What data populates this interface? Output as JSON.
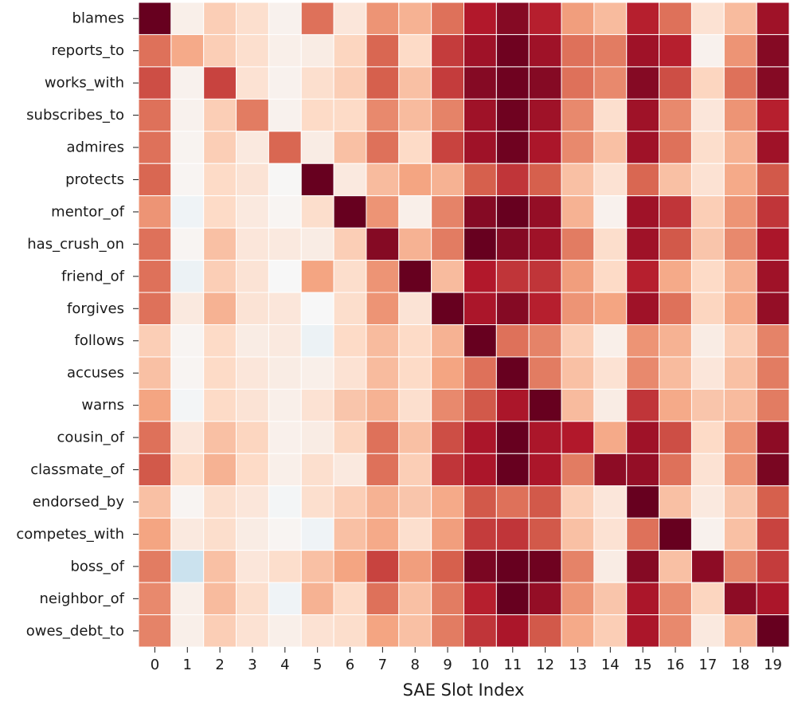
{
  "chart_data": {
    "type": "heatmap",
    "title": "",
    "xlabel": "SAE Slot Index",
    "ylabel": "",
    "x_categories": [
      "0",
      "1",
      "2",
      "3",
      "4",
      "5",
      "6",
      "7",
      "8",
      "9",
      "10",
      "11",
      "12",
      "13",
      "14",
      "15",
      "16",
      "17",
      "18",
      "19"
    ],
    "y_categories": [
      "blames",
      "reports_to",
      "works_with",
      "subscribes_to",
      "admires",
      "protects",
      "mentor_of",
      "has_crush_on",
      "friend_of",
      "forgives",
      "follows",
      "accuses",
      "warns",
      "cousin_of",
      "classmate_of",
      "endorsed_by",
      "competes_with",
      "boss_of",
      "neighbor_of",
      "owes_debt_to"
    ],
    "colormap": "RdBu_r",
    "vmin": -1,
    "vmax": 1,
    "colorbar": false,
    "cell_border_color": "#ffffff",
    "values": [
      [
        1.0,
        0.06,
        0.25,
        0.17,
        0.04,
        0.55,
        0.12,
        0.45,
        0.35,
        0.55,
        0.8,
        0.92,
        0.78,
        0.42,
        0.32,
        0.78,
        0.55,
        0.15,
        0.32,
        0.85
      ],
      [
        0.55,
        0.38,
        0.25,
        0.17,
        0.06,
        0.08,
        0.22,
        0.58,
        0.2,
        0.7,
        0.85,
        0.98,
        0.85,
        0.55,
        0.52,
        0.85,
        0.78,
        0.04,
        0.45,
        0.92
      ],
      [
        0.65,
        0.04,
        0.68,
        0.15,
        0.04,
        0.17,
        0.25,
        0.6,
        0.3,
        0.7,
        0.92,
        0.98,
        0.92,
        0.55,
        0.48,
        0.92,
        0.65,
        0.22,
        0.55,
        0.92
      ],
      [
        0.55,
        0.04,
        0.25,
        0.52,
        0.04,
        0.2,
        0.2,
        0.48,
        0.32,
        0.5,
        0.85,
        0.98,
        0.85,
        0.48,
        0.17,
        0.85,
        0.48,
        0.12,
        0.45,
        0.78
      ],
      [
        0.55,
        0.03,
        0.25,
        0.1,
        0.58,
        0.08,
        0.3,
        0.55,
        0.2,
        0.68,
        0.85,
        0.98,
        0.82,
        0.48,
        0.3,
        0.85,
        0.55,
        0.18,
        0.35,
        0.85
      ],
      [
        0.58,
        0.02,
        0.2,
        0.14,
        0.01,
        1.0,
        0.1,
        0.32,
        0.4,
        0.35,
        0.6,
        0.72,
        0.6,
        0.3,
        0.15,
        0.58,
        0.3,
        0.15,
        0.38,
        0.62
      ],
      [
        0.45,
        -0.04,
        0.2,
        0.1,
        0.02,
        0.18,
        1.0,
        0.45,
        0.06,
        0.5,
        0.92,
        1.0,
        0.88,
        0.35,
        0.04,
        0.85,
        0.72,
        0.25,
        0.45,
        0.72
      ],
      [
        0.55,
        0.02,
        0.3,
        0.12,
        0.1,
        0.08,
        0.25,
        0.92,
        0.35,
        0.52,
        1.0,
        0.92,
        0.85,
        0.52,
        0.18,
        0.85,
        0.62,
        0.28,
        0.48,
        0.82
      ],
      [
        0.55,
        -0.06,
        0.25,
        0.14,
        0.0,
        0.4,
        0.18,
        0.45,
        1.0,
        0.32,
        0.8,
        0.72,
        0.72,
        0.42,
        0.2,
        0.78,
        0.38,
        0.2,
        0.35,
        0.85
      ],
      [
        0.55,
        0.1,
        0.35,
        0.14,
        0.12,
        0.0,
        0.18,
        0.45,
        0.14,
        1.0,
        0.82,
        0.92,
        0.78,
        0.45,
        0.4,
        0.85,
        0.55,
        0.22,
        0.38,
        0.88
      ],
      [
        0.25,
        0.02,
        0.2,
        0.08,
        0.1,
        -0.06,
        0.2,
        0.32,
        0.2,
        0.35,
        1.0,
        0.55,
        0.5,
        0.25,
        0.06,
        0.45,
        0.35,
        0.08,
        0.25,
        0.5
      ],
      [
        0.3,
        0.02,
        0.2,
        0.12,
        0.08,
        0.06,
        0.15,
        0.32,
        0.2,
        0.4,
        0.55,
        1.0,
        0.52,
        0.3,
        0.15,
        0.48,
        0.32,
        0.12,
        0.3,
        0.52
      ],
      [
        0.4,
        -0.02,
        0.2,
        0.14,
        0.06,
        0.15,
        0.28,
        0.35,
        0.17,
        0.48,
        0.62,
        0.82,
        1.0,
        0.32,
        0.08,
        0.72,
        0.38,
        0.28,
        0.32,
        0.52
      ],
      [
        0.55,
        0.12,
        0.3,
        0.22,
        0.05,
        0.08,
        0.22,
        0.55,
        0.3,
        0.65,
        0.82,
        1.0,
        0.82,
        0.8,
        0.38,
        0.85,
        0.65,
        0.2,
        0.45,
        0.9
      ],
      [
        0.62,
        0.2,
        0.35,
        0.2,
        0.06,
        0.17,
        0.1,
        0.55,
        0.25,
        0.72,
        0.82,
        1.0,
        0.82,
        0.52,
        0.9,
        0.88,
        0.55,
        0.15,
        0.45,
        0.95
      ],
      [
        0.3,
        0.02,
        0.17,
        0.12,
        -0.02,
        0.17,
        0.25,
        0.35,
        0.28,
        0.38,
        0.62,
        0.55,
        0.62,
        0.25,
        0.12,
        1.0,
        0.3,
        0.1,
        0.28,
        0.6
      ],
      [
        0.4,
        0.1,
        0.18,
        0.08,
        0.02,
        -0.04,
        0.3,
        0.38,
        0.17,
        0.42,
        0.7,
        0.72,
        0.62,
        0.3,
        0.15,
        0.55,
        1.0,
        0.04,
        0.3,
        0.68
      ],
      [
        0.52,
        -0.22,
        0.3,
        0.12,
        0.18,
        0.3,
        0.4,
        0.68,
        0.42,
        0.6,
        0.95,
        1.0,
        0.98,
        0.5,
        0.08,
        0.92,
        0.3,
        0.9,
        0.5,
        0.7
      ],
      [
        0.48,
        0.06,
        0.32,
        0.18,
        -0.04,
        0.35,
        0.2,
        0.55,
        0.3,
        0.52,
        0.78,
        1.0,
        0.88,
        0.45,
        0.28,
        0.82,
        0.48,
        0.22,
        0.9,
        0.82
      ],
      [
        0.5,
        0.06,
        0.25,
        0.15,
        0.06,
        0.15,
        0.18,
        0.4,
        0.3,
        0.52,
        0.72,
        0.82,
        0.62,
        0.38,
        0.25,
        0.82,
        0.48,
        0.1,
        0.35,
        1.0
      ]
    ]
  }
}
